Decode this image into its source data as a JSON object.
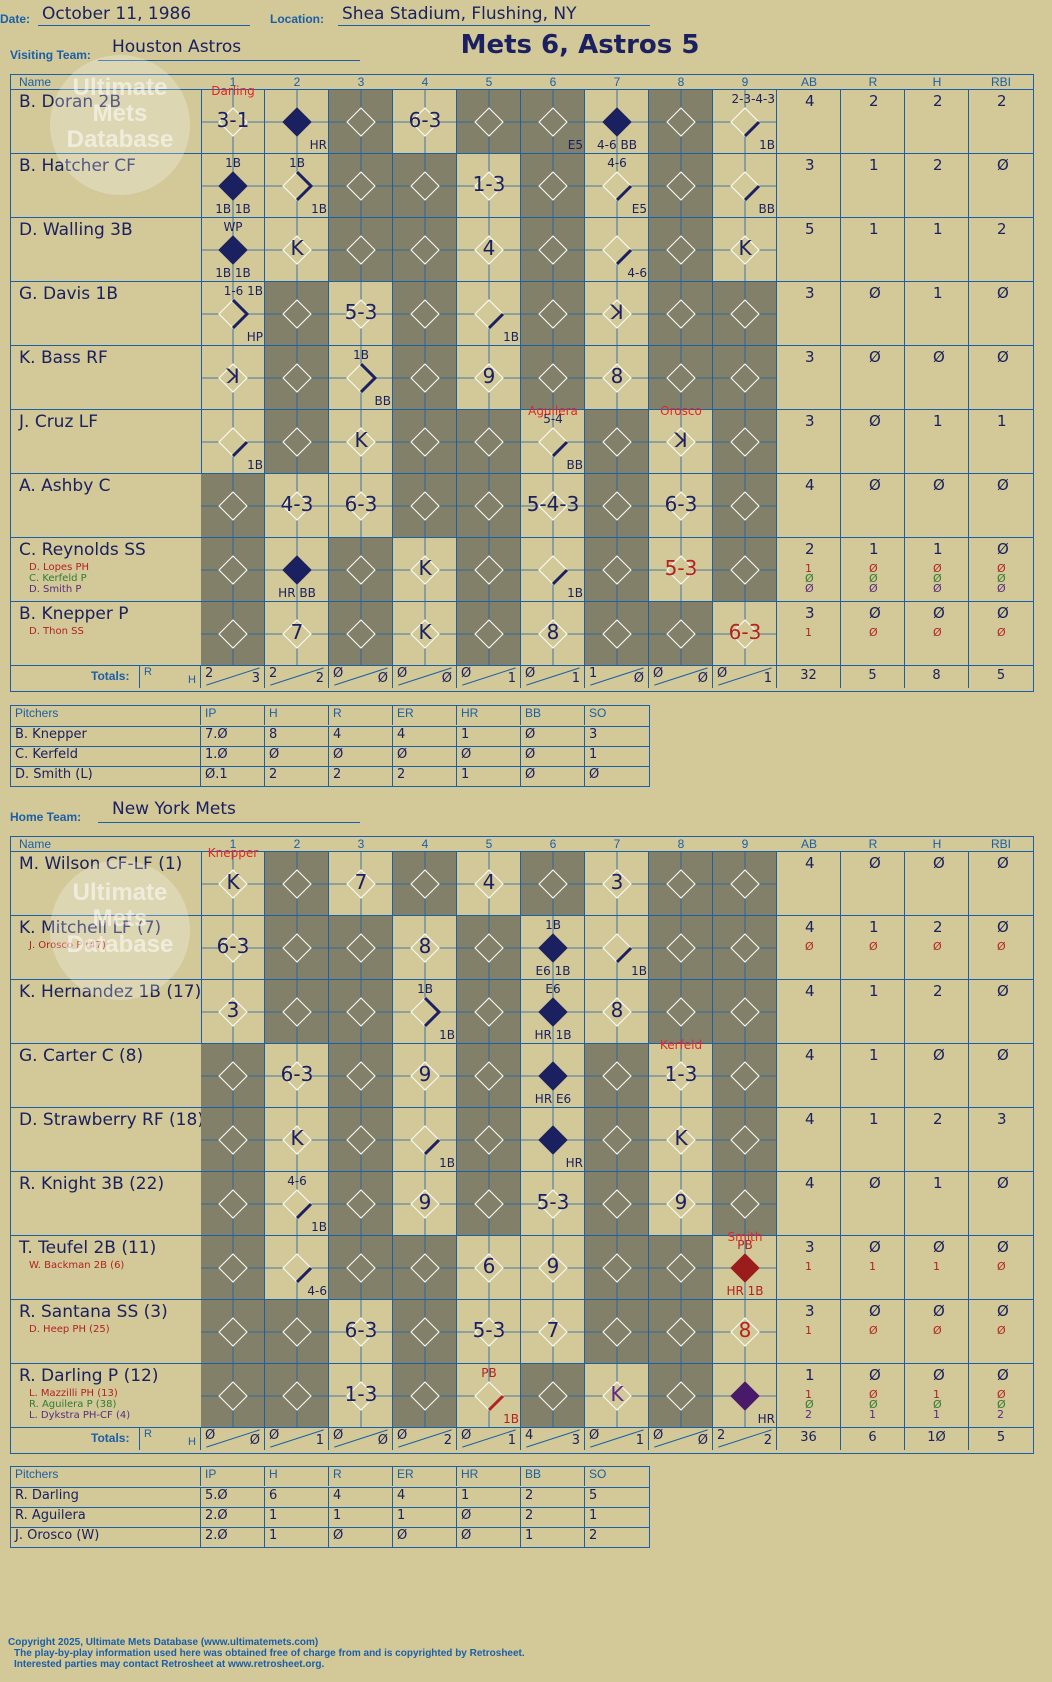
{
  "header": {
    "date_label": "Date:",
    "date": "October 11, 1986",
    "location_label": "Location:",
    "location": "Shea Stadium, Flushing, NY",
    "visiting_label": "Visiting Team:",
    "visiting": "Houston Astros",
    "home_label": "Home Team:",
    "home": "New York Mets",
    "title": "Mets 6, Astros 5"
  },
  "columns": [
    "Name",
    "1",
    "2",
    "3",
    "4",
    "5",
    "6",
    "7",
    "8",
    "9",
    "AB",
    "R",
    "H",
    "RBI"
  ],
  "visitors": {
    "rows": [
      {
        "name": "B. Doran 2B",
        "subs": [],
        "ab": [
          "4"
        ],
        "r": [
          "2"
        ],
        "h": [
          "2"
        ],
        "rbi": [
          "2"
        ],
        "pitcher_note": {
          "col": 1,
          "text": "Darling"
        },
        "cells": [
          {
            "t": "3-1"
          },
          {
            "dia": "full",
            "m": "HR"
          },
          {
            "gray": true
          },
          {
            "t": "6-3"
          },
          {
            "gray": true
          },
          {
            "gray": true,
            "m": "E5"
          },
          {
            "dia": "full",
            "m": "4-6 BB"
          },
          {
            "gray": true
          },
          {
            "dia": "half",
            "m": "1B",
            "n": "2-3-4-3"
          }
        ]
      },
      {
        "name": "B. Hatcher CF",
        "subs": [],
        "ab": [
          "3"
        ],
        "r": [
          "1"
        ],
        "h": [
          "2"
        ],
        "rbi": [
          "Ø"
        ],
        "cells": [
          {
            "dia": "full",
            "m": "1B 1B",
            "n": "1B"
          },
          {
            "dia": "half2",
            "m": "1B",
            "n": "1B"
          },
          {
            "gray": true
          },
          {
            "gray": true
          },
          {
            "t": "1-3"
          },
          {
            "gray": true
          },
          {
            "dia": "half",
            "m": "E5",
            "n": "4-6"
          },
          {
            "gray": true
          },
          {
            "dia": "half",
            "m": "BB"
          }
        ]
      },
      {
        "name": "D. Walling 3B",
        "subs": [],
        "ab": [
          "5"
        ],
        "r": [
          "1"
        ],
        "h": [
          "1"
        ],
        "rbi": [
          "2"
        ],
        "cells": [
          {
            "dia": "full",
            "m": "1B 1B",
            "n": "WP"
          },
          {
            "t": "K"
          },
          {
            "gray": true
          },
          {
            "gray": true
          },
          {
            "t": "4"
          },
          {
            "gray": true
          },
          {
            "dia": "half",
            "m": "4-6"
          },
          {
            "gray": true
          },
          {
            "t": "K"
          }
        ]
      },
      {
        "name": "G. Davis 1B",
        "subs": [],
        "ab": [
          "3"
        ],
        "r": [
          "Ø"
        ],
        "h": [
          "1"
        ],
        "rbi": [
          "Ø"
        ],
        "cells": [
          {
            "dia": "half2",
            "m": "HP",
            "n": "1-6 1B"
          },
          {
            "gray": true
          },
          {
            "t": "5-3"
          },
          {
            "gray": true
          },
          {
            "dia": "half",
            "m": "1B"
          },
          {
            "gray": true
          },
          {
            "t": "ꓘ"
          },
          {
            "gray": true
          },
          {
            "gray": true
          }
        ]
      },
      {
        "name": "K. Bass RF",
        "subs": [],
        "ab": [
          "3"
        ],
        "r": [
          "Ø"
        ],
        "h": [
          "Ø"
        ],
        "rbi": [
          "Ø"
        ],
        "cells": [
          {
            "t": "ꓘ"
          },
          {
            "gray": true
          },
          {
            "dia": "half2",
            "m": "BB",
            "n": "1B"
          },
          {
            "gray": true
          },
          {
            "t": "9"
          },
          {
            "gray": true
          },
          {
            "t": "8"
          },
          {
            "gray": true
          },
          {
            "gray": true
          }
        ]
      },
      {
        "name": "J. Cruz LF",
        "subs": [],
        "ab": [
          "3"
        ],
        "r": [
          "Ø"
        ],
        "h": [
          "1"
        ],
        "rbi": [
          "1"
        ],
        "pitcher_note": {
          "col": 6,
          "text": "Aguilera"
        },
        "pitcher_note2": {
          "col": 8,
          "text": "Orosco"
        },
        "cells": [
          {
            "dia": "half",
            "m": "1B"
          },
          {
            "gray": true
          },
          {
            "t": "K"
          },
          {
            "gray": true
          },
          {
            "gray": true
          },
          {
            "dia": "half",
            "m": "BB",
            "n": "5-4"
          },
          {
            "gray": true
          },
          {
            "t": "ꓘ"
          },
          {
            "gray": true
          }
        ]
      },
      {
        "name": "A. Ashby C",
        "subs": [],
        "ab": [
          "4"
        ],
        "r": [
          "Ø"
        ],
        "h": [
          "Ø"
        ],
        "rbi": [
          "Ø"
        ],
        "cells": [
          {
            "gray": true
          },
          {
            "t": "4-3"
          },
          {
            "t": "6-3"
          },
          {
            "gray": true
          },
          {
            "gray": true
          },
          {
            "t": "5-4-3"
          },
          {
            "gray": true
          },
          {
            "t": "6-3"
          },
          {
            "gray": true
          }
        ]
      },
      {
        "name": "C. Reynolds SS",
        "subs": [
          {
            "n": "D. Lopes PH",
            "c": "#b22222"
          },
          {
            "n": "C. Kerfeld P",
            "c": "#2e7d32"
          },
          {
            "n": "D. Smith P",
            "c": "#5a2a82"
          }
        ],
        "ab": [
          "2",
          "1",
          "Ø",
          "Ø"
        ],
        "r": [
          "1",
          "Ø",
          "Ø",
          "Ø"
        ],
        "h": [
          "1",
          "Ø",
          "Ø",
          "Ø"
        ],
        "rbi": [
          "Ø",
          "Ø",
          "Ø",
          "Ø"
        ],
        "cells": [
          {
            "gray": true
          },
          {
            "dia": "full",
            "m": "HR BB"
          },
          {
            "gray": true
          },
          {
            "t": "K"
          },
          {
            "gray": true
          },
          {
            "dia": "half",
            "m": "1B"
          },
          {
            "gray": true
          },
          {
            "t": "5-3",
            "red": true
          },
          {
            "gray": true
          }
        ]
      },
      {
        "name": "B. Knepper P",
        "subs": [
          {
            "n": "D. Thon SS",
            "c": "#b22222"
          }
        ],
        "ab": [
          "3",
          "1"
        ],
        "r": [
          "Ø",
          "Ø"
        ],
        "h": [
          "Ø",
          "Ø"
        ],
        "rbi": [
          "Ø",
          "Ø"
        ],
        "cells": [
          {
            "gray": true
          },
          {
            "t": "7"
          },
          {
            "gray": true
          },
          {
            "t": "K"
          },
          {
            "gray": true
          },
          {
            "t": "8"
          },
          {
            "gray": true
          },
          {
            "gray": true
          },
          {
            "t": "6-3",
            "red": true
          }
        ]
      }
    ],
    "totals_label": "Totals:",
    "rh_label_r": "R",
    "rh_label_h": "H",
    "totals": [
      [
        "2",
        "3"
      ],
      [
        "2",
        "2"
      ],
      [
        "Ø",
        "Ø"
      ],
      [
        "Ø",
        "Ø"
      ],
      [
        "Ø",
        "1"
      ],
      [
        "Ø",
        "1"
      ],
      [
        "1",
        "Ø"
      ],
      [
        "Ø",
        "Ø"
      ],
      [
        "Ø",
        "1"
      ]
    ],
    "sum": {
      "ab": "32",
      "r": "5",
      "h": "8",
      "rbi": "5"
    }
  },
  "visitor_pitching": {
    "headers": [
      "Pitchers",
      "IP",
      "H",
      "R",
      "ER",
      "HR",
      "BB",
      "SO"
    ],
    "rows": [
      [
        "B. Knepper",
        "7.Ø",
        "8",
        "4",
        "4",
        "1",
        "Ø",
        "3"
      ],
      [
        "C. Kerfeld",
        "1.Ø",
        "Ø",
        "Ø",
        "Ø",
        "Ø",
        "Ø",
        "1"
      ],
      [
        "D. Smith (L)",
        "Ø.1",
        "2",
        "2",
        "2",
        "1",
        "Ø",
        "Ø"
      ]
    ]
  },
  "home": {
    "rows": [
      {
        "name": "M. Wilson CF-LF (1)",
        "subs": [],
        "ab": [
          "4"
        ],
        "r": [
          "Ø"
        ],
        "h": [
          "Ø"
        ],
        "rbi": [
          "Ø"
        ],
        "pitcher_note": {
          "col": 1,
          "text": "Knepper"
        },
        "cells": [
          {
            "t": "K"
          },
          {
            "gray": true
          },
          {
            "t": "7"
          },
          {
            "gray": true
          },
          {
            "t": "4"
          },
          {
            "gray": true
          },
          {
            "t": "3"
          },
          {
            "gray": true
          },
          {
            "gray": true
          }
        ]
      },
      {
        "name": "K. Mitchell LF (7)",
        "subs": [
          {
            "n": "J. Orosco P (47)",
            "c": "#b22222"
          }
        ],
        "ab": [
          "4",
          "Ø"
        ],
        "r": [
          "1",
          "Ø"
        ],
        "h": [
          "2",
          "Ø"
        ],
        "rbi": [
          "Ø",
          "Ø"
        ],
        "cells": [
          {
            "t": "6-3"
          },
          {
            "gray": true
          },
          {
            "gray": true
          },
          {
            "t": "8"
          },
          {
            "gray": true
          },
          {
            "dia": "full",
            "m": "E6 1B",
            "n": "1B"
          },
          {
            "dia": "half",
            "m": "1B"
          },
          {
            "gray": true
          },
          {
            "gray": true
          }
        ]
      },
      {
        "name": "K. Hernandez 1B (17)",
        "subs": [],
        "ab": [
          "4"
        ],
        "r": [
          "1"
        ],
        "h": [
          "2"
        ],
        "rbi": [
          "Ø"
        ],
        "cells": [
          {
            "t": "3"
          },
          {
            "gray": true
          },
          {
            "gray": true
          },
          {
            "dia": "half2",
            "m": "1B",
            "n": "1B"
          },
          {
            "gray": true
          },
          {
            "dia": "full",
            "m": "HR 1B",
            "n": "E6"
          },
          {
            "t": "8"
          },
          {
            "gray": true
          },
          {
            "gray": true
          }
        ]
      },
      {
        "name": "G. Carter C (8)",
        "subs": [],
        "ab": [
          "4"
        ],
        "r": [
          "1"
        ],
        "h": [
          "Ø"
        ],
        "rbi": [
          "Ø"
        ],
        "pitcher_note": {
          "col": 8,
          "text": "Kerfeld"
        },
        "cells": [
          {
            "gray": true
          },
          {
            "t": "6-3"
          },
          {
            "gray": true
          },
          {
            "t": "9"
          },
          {
            "gray": true
          },
          {
            "dia": "full",
            "m": "HR E6"
          },
          {
            "gray": true
          },
          {
            "t": "1-3"
          },
          {
            "gray": true
          }
        ]
      },
      {
        "name": "D. Strawberry RF (18)",
        "subs": [],
        "ab": [
          "4"
        ],
        "r": [
          "1"
        ],
        "h": [
          "2"
        ],
        "rbi": [
          "3"
        ],
        "cells": [
          {
            "gray": true
          },
          {
            "t": "K"
          },
          {
            "gray": true
          },
          {
            "dia": "half",
            "m": "1B"
          },
          {
            "gray": true
          },
          {
            "dia": "full",
            "m": "HR"
          },
          {
            "gray": true
          },
          {
            "t": "K"
          },
          {
            "gray": true
          }
        ]
      },
      {
        "name": "R. Knight 3B (22)",
        "subs": [],
        "ab": [
          "4"
        ],
        "r": [
          "Ø"
        ],
        "h": [
          "1"
        ],
        "rbi": [
          "Ø"
        ],
        "cells": [
          {
            "gray": true
          },
          {
            "dia": "half",
            "m": "1B",
            "n": "4-6"
          },
          {
            "gray": true
          },
          {
            "t": "9"
          },
          {
            "gray": true
          },
          {
            "t": "5-3"
          },
          {
            "gray": true
          },
          {
            "t": "9"
          },
          {
            "gray": true
          }
        ]
      },
      {
        "name": "T. Teufel 2B (11)",
        "subs": [
          {
            "n": "W. Backman 2B (6)",
            "c": "#b22222"
          }
        ],
        "ab": [
          "3",
          "1"
        ],
        "r": [
          "Ø",
          "1"
        ],
        "h": [
          "Ø",
          "1"
        ],
        "rbi": [
          "Ø",
          "Ø"
        ],
        "pitcher_note": {
          "col": 9,
          "text": "Smith"
        },
        "cells": [
          {
            "gray": true
          },
          {
            "dia": "half",
            "m": "4-6"
          },
          {
            "gray": true
          },
          {
            "gray": true
          },
          {
            "t": "6"
          },
          {
            "t": "9"
          },
          {
            "gray": true
          },
          {
            "gray": true
          },
          {
            "dia": "fullred",
            "m": "HR 1B",
            "n": "PB"
          }
        ]
      },
      {
        "name": "R. Santana SS (3)",
        "subs": [
          {
            "n": "D. Heep PH (25)",
            "c": "#b22222"
          }
        ],
        "ab": [
          "3",
          "1"
        ],
        "r": [
          "Ø",
          "Ø"
        ],
        "h": [
          "Ø",
          "Ø"
        ],
        "rbi": [
          "Ø",
          "Ø"
        ],
        "cells": [
          {
            "gray": true
          },
          {
            "gray": true
          },
          {
            "t": "6-3"
          },
          {
            "gray": true
          },
          {
            "t": "5-3"
          },
          {
            "t": "7"
          },
          {
            "gray": true
          },
          {
            "gray": true
          },
          {
            "t": "8",
            "red": true
          }
        ]
      },
      {
        "name": "R. Darling P (12)",
        "subs": [
          {
            "n": "L. Mazzilli PH (13)",
            "c": "#b22222"
          },
          {
            "n": "R. Aguilera P (38)",
            "c": "#2e7d32"
          },
          {
            "n": "L. Dykstra PH-CF (4)",
            "c": "#5a2a82"
          }
        ],
        "ab": [
          "1",
          "1",
          "Ø",
          "2"
        ],
        "r": [
          "Ø",
          "Ø",
          "Ø",
          "1"
        ],
        "h": [
          "Ø",
          "1",
          "Ø",
          "1"
        ],
        "rbi": [
          "Ø",
          "Ø",
          "Ø",
          "2"
        ],
        "cells": [
          {
            "gray": true
          },
          {
            "gray": true
          },
          {
            "t": "1-3"
          },
          {
            "gray": true
          },
          {
            "dia": "halfred",
            "m": "1B",
            "n": "PB"
          },
          {
            "gray": true
          },
          {
            "t": "K",
            "purple": true
          },
          {
            "gray": true
          },
          {
            "dia": "fullpurple",
            "m": "HR"
          }
        ]
      }
    ],
    "totals_label": "Totals:",
    "rh_label_r": "R",
    "rh_label_h": "H",
    "totals": [
      [
        "Ø",
        "Ø"
      ],
      [
        "Ø",
        "1"
      ],
      [
        "Ø",
        "Ø"
      ],
      [
        "Ø",
        "2"
      ],
      [
        "Ø",
        "1"
      ],
      [
        "4",
        "3"
      ],
      [
        "Ø",
        "1"
      ],
      [
        "Ø",
        "Ø"
      ],
      [
        "2",
        "2"
      ]
    ],
    "sum": {
      "ab": "36",
      "r": "6",
      "h": "1Ø",
      "rbi": "5"
    }
  },
  "home_pitching": {
    "headers": [
      "Pitchers",
      "IP",
      "H",
      "R",
      "ER",
      "HR",
      "BB",
      "SO"
    ],
    "rows": [
      [
        "R. Darling",
        "5.Ø",
        "6",
        "4",
        "4",
        "1",
        "2",
        "5"
      ],
      [
        "R. Aguilera",
        "2.Ø",
        "1",
        "1",
        "1",
        "Ø",
        "2",
        "1"
      ],
      [
        "J. Orosco (W)",
        "2.Ø",
        "1",
        "Ø",
        "Ø",
        "Ø",
        "1",
        "2"
      ]
    ]
  },
  "watermark": "Ultimate Mets Database",
  "footer": [
    "Copyright 2025, Ultimate Mets Database (www.ultimatemets.com)",
    "The play-by-play information used here was obtained free of charge from and is copyrighted by Retrosheet.",
    "Interested parties may contact Retrosheet at www.retrosheet.org."
  ]
}
